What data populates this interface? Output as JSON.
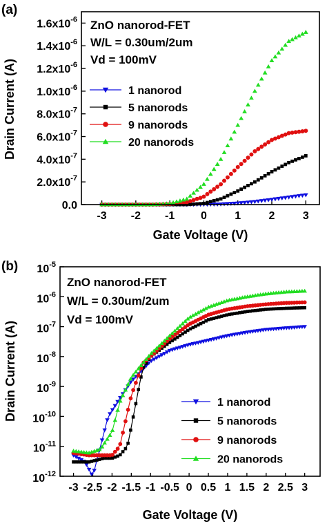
{
  "chart_data": [
    {
      "panel": "(a)",
      "type": "line",
      "annotations": [
        "ZnO nanorod-FET",
        "W/L = 0.30um/2um",
        "Vd = 100mV"
      ],
      "xlabel": "Gate Voltage (V)",
      "ylabel": "Drain Current (A)",
      "xlim": [
        -3.6,
        3.4
      ],
      "ylim": [
        0,
        1.7e-06
      ],
      "x_ticks": [
        -3,
        -2,
        -1,
        0,
        1,
        2,
        3
      ],
      "x_tick_labels": [
        "-3",
        "-2",
        "-1",
        "0",
        "1",
        "2",
        "3"
      ],
      "y_ticks": [
        0,
        2e-07,
        4e-07,
        6e-07,
        8e-07,
        1e-06,
        1.2e-06,
        1.4e-06,
        1.6e-06
      ],
      "y_tick_labels": [
        {
          "m": "0.0",
          "e": ""
        },
        {
          "m": "2.0x10",
          "e": "-7"
        },
        {
          "m": "4.0x10",
          "e": "-7"
        },
        {
          "m": "6.0x10",
          "e": "-7"
        },
        {
          "m": "8.0x10",
          "e": "-7"
        },
        {
          "m": "1.0x10",
          "e": "-6"
        },
        {
          "m": "1.2x10",
          "e": "-6"
        },
        {
          "m": "1.4x10",
          "e": "-6"
        },
        {
          "m": "1.6x10",
          "e": "-6"
        }
      ],
      "x": [
        -3,
        -2.5,
        -2,
        -1.5,
        -1,
        -0.5,
        0,
        0.5,
        1,
        1.5,
        2,
        2.5,
        3
      ],
      "legend_position": "right",
      "series": [
        {
          "name": "1 nanorod",
          "color": "#1010e0",
          "marker": "triangle-down",
          "values": [
            0,
            0,
            0,
            0,
            0,
            0,
            1e-09,
            4e-09,
            1.2e-08,
            2.6e-08,
            4.5e-08,
            6.5e-08,
            8.5e-08
          ]
        },
        {
          "name": "5 nanorods",
          "color": "#000000",
          "marker": "square",
          "values": [
            0,
            0,
            0,
            0,
            0,
            0,
            1e-08,
            5e-08,
            1.2e-07,
            2e-07,
            2.9e-07,
            3.7e-07,
            4.3e-07
          ]
        },
        {
          "name": "9 nanorods",
          "color": "#e01010",
          "marker": "circle",
          "values": [
            0,
            0,
            0,
            0,
            5e-09,
            2e-08,
            7e-08,
            1.8e-07,
            3.3e-07,
            4.7e-07,
            5.7e-07,
            6.3e-07,
            6.5e-07
          ]
        },
        {
          "name": "20 nanorods",
          "color": "#22dd22",
          "marker": "triangle-up",
          "values": [
            0,
            0,
            0,
            0,
            1e-08,
            5e-08,
            1.8e-07,
            4e-07,
            7e-07,
            1e-06,
            1.27e-06,
            1.44e-06,
            1.52e-06
          ]
        }
      ]
    },
    {
      "panel": "(b)",
      "type": "line",
      "annotations": [
        "ZnO nanorod-FET",
        "W/L = 0.30um/2um",
        "Vd = 100mV"
      ],
      "xlabel": "Gate Voltage (V)",
      "ylabel": "Drain Current (A)",
      "xlim": [
        -3.35,
        3.4
      ],
      "ylim": [
        1e-12,
        1e-05
      ],
      "yscale": "log",
      "x_ticks": [
        -3,
        -2.5,
        -2,
        -1.5,
        -1,
        -0.5,
        0,
        0.5,
        1,
        1.5,
        2,
        2.5,
        3
      ],
      "x_tick_labels": [
        "-3",
        "-2.5",
        "-2",
        "-1.5",
        "-1",
        "-0.5",
        "0",
        "0.5",
        "1",
        "1.5",
        "2",
        "2.5",
        "3"
      ],
      "y_tick_exponents": [
        -12,
        -11,
        -10,
        -9,
        -8,
        -7,
        -6,
        -5
      ],
      "y_tick_labels": [
        {
          "m": "10",
          "e": "-12"
        },
        {
          "m": "10",
          "e": "-11"
        },
        {
          "m": "10",
          "e": "-10"
        },
        {
          "m": "10",
          "e": "-9"
        },
        {
          "m": "10",
          "e": "-8"
        },
        {
          "m": "10",
          "e": "-7"
        },
        {
          "m": "10",
          "e": "-6"
        },
        {
          "m": "10",
          "e": "-5"
        }
      ],
      "legend_position": "bottom-right",
      "series": [
        {
          "name": "1 nanorod",
          "color": "#1010e0",
          "marker": "triangle-down",
          "x": [
            -3,
            -2.7,
            -2.5,
            -2.3,
            -2.1,
            -1.8,
            -1.5,
            -1,
            -0.5,
            0,
            0.5,
            1,
            1.5,
            2,
            2.5,
            3
          ],
          "values": [
            5e-12,
            3e-12,
            1e-12,
            1e-11,
            1e-10,
            4e-10,
            1.5e-09,
            7e-09,
            1.6e-08,
            2.5e-08,
            3.5e-08,
            5e-08,
            6.5e-08,
            8e-08,
            9e-08,
            1e-07
          ]
        },
        {
          "name": "5 nanorods",
          "color": "#000000",
          "marker": "square",
          "x": [
            -3,
            -2.6,
            -2.2,
            -2,
            -1.8,
            -1.6,
            -1.4,
            -1.3,
            -1.2,
            -1,
            -0.5,
            0,
            0.5,
            1,
            1.5,
            2,
            2.5,
            3
          ],
          "values": [
            3e-12,
            3e-12,
            4e-12,
            4e-12,
            5e-12,
            1e-11,
            2e-10,
            1e-09,
            4e-09,
            1e-08,
            3e-08,
            8e-08,
            1.7e-07,
            2.5e-07,
            3.2e-07,
            3.8e-07,
            4.1e-07,
            4.3e-07
          ]
        },
        {
          "name": "9 nanorods",
          "color": "#e01010",
          "marker": "circle",
          "x": [
            -3,
            -2.6,
            -2.2,
            -2,
            -1.8,
            -1.5,
            -1.2,
            -1,
            -0.5,
            0,
            0.5,
            1,
            1.5,
            2,
            2.5,
            3
          ],
          "values": [
            6e-12,
            5e-12,
            5e-12,
            5e-12,
            1e-11,
            5e-10,
            6e-09,
            1e-08,
            4e-08,
            1.2e-07,
            2.5e-07,
            3.8e-07,
            4.8e-07,
            5.6e-07,
            6.2e-07,
            6.5e-07
          ]
        },
        {
          "name": "20 nanorods",
          "color": "#22dd22",
          "marker": "triangle-up",
          "x": [
            -3,
            -2.6,
            -2.3,
            -2,
            -1.8,
            -1.5,
            -1.2,
            -1,
            -0.5,
            0,
            0.5,
            1,
            1.5,
            2,
            2.5,
            3
          ],
          "values": [
            7e-12,
            6e-12,
            8e-12,
            3e-11,
            3e-10,
            2e-09,
            6e-09,
            1.2e-08,
            5e-08,
            2e-07,
            4.5e-07,
            7.5e-07,
            1e-06,
            1.25e-06,
            1.45e-06,
            1.55e-06
          ]
        }
      ]
    }
  ]
}
